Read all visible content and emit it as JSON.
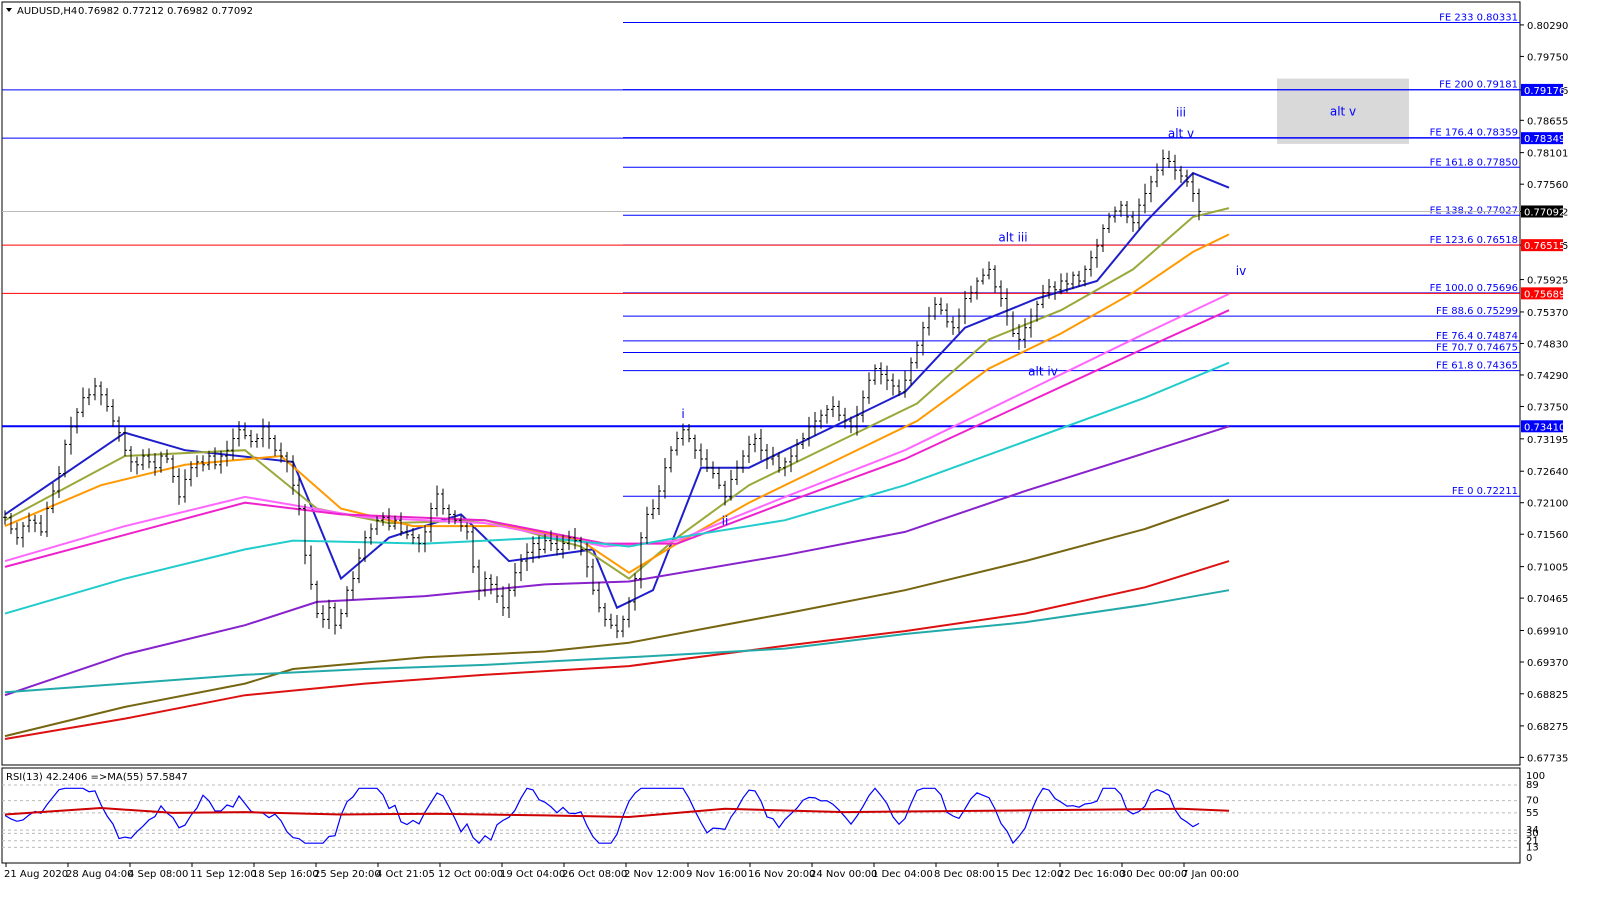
{
  "header": {
    "title": "AUDUSD,H4",
    "ohlc": "0.76982 0.77212 0.76982 0.77092"
  },
  "colors": {
    "fe_line": "#0000ff",
    "fe_red": "#ff0000",
    "hline_341": "#0000ff",
    "current_price_bg": "#000000",
    "red_tag_bg": "#ff0000",
    "blue_tag_bg": "#0000ff",
    "rsi_line": "#0000ff",
    "rsi_ma": "#cc0000",
    "ma_blue": "#1e1ecc",
    "ma_olive": "#9aa83a",
    "ma_orange": "#ff9900",
    "ma_violet": "#ff66ff",
    "ma_magenta": "#ee22cc",
    "ma_cyan": "#22cccc",
    "ma_purple": "#8822cc",
    "ma_darkolive": "#776611",
    "ma_red": "#dd1111",
    "ma_teal": "#22aaaa",
    "box": "#d9d9d9"
  },
  "chart_data": {
    "type": "line",
    "symbol": "AUDUSD",
    "timeframe": "H4",
    "price_axis": {
      "ylim": [
        0.6769,
        0.8058
      ],
      "ticks": [
        "0.80290",
        "0.79750",
        "0.79176",
        "0.78655",
        "0.78101",
        "0.77560",
        "0.77092",
        "0.76515",
        "0.75925",
        "0.75370",
        "0.74830",
        "0.74290",
        "0.73750",
        "0.73195",
        "0.72640",
        "0.72100",
        "0.71560",
        "0.71005",
        "0.70465",
        "0.69910",
        "0.69370",
        "0.68825",
        "0.68275",
        "0.67735"
      ]
    },
    "time_axis": {
      "ticks": [
        "21 Aug 2020",
        "28 Aug 04:00",
        "4 Sep 08:00",
        "11 Sep 12:00",
        "18 Sep 16:00",
        "25 Sep 20:00",
        "4 Oct 21:05",
        "12 Oct 00:00",
        "19 Oct 04:00",
        "26 Oct 08:00",
        "2 Nov 12:00",
        "9 Nov 16:00",
        "16 Nov 20:00",
        "24 Nov 00:00",
        "1 Dec 04:00",
        "8 Dec 08:00",
        "15 Dec 12:00",
        "22 Dec 16:00",
        "30 Dec 00:00",
        "7 Jan 00:00"
      ]
    },
    "fib_levels": [
      {
        "label": "FE 233 0.80331",
        "price": 0.80331
      },
      {
        "label": "FE 200 0.79181",
        "price": 0.79181
      },
      {
        "label": "FE 176.4 0.78359",
        "price": 0.78359
      },
      {
        "label": "FE 161.8 0.77850",
        "price": 0.7785
      },
      {
        "label": "FE 138.2 0.77027",
        "price": 0.77027
      },
      {
        "label": "FE 123.6 0.76518",
        "price": 0.76518
      },
      {
        "label": "FE 100.0 0.75696",
        "price": 0.75696
      },
      {
        "label": "FE 88.6 0.75299",
        "price": 0.75299
      },
      {
        "label": "FE 76.4 0.74874",
        "price": 0.74874
      },
      {
        "label": "FE 70.7 0.74675",
        "price": 0.74675
      },
      {
        "label": "FE 61.8 0.74365",
        "price": 0.74365
      },
      {
        "label": "FE 0 0.72211",
        "price": 0.72211
      }
    ],
    "price_tags": [
      {
        "text": "0.79176",
        "price": 0.79176,
        "style": "blue"
      },
      {
        "text": "0.78349",
        "price": 0.78349,
        "style": "blue"
      },
      {
        "text": "0.77092",
        "price": 0.77092,
        "style": "black"
      },
      {
        "text": "0.76515",
        "price": 0.76515,
        "style": "red"
      },
      {
        "text": "0.75689",
        "price": 0.75689,
        "style": "red"
      },
      {
        "text": "0.73410",
        "price": 0.7341,
        "style": "blue"
      }
    ],
    "full_lines": [
      {
        "price": 0.79176,
        "color": "blue"
      },
      {
        "price": 0.78349,
        "color": "blue"
      },
      {
        "price": 0.77092,
        "color": "gray"
      },
      {
        "price": 0.76515,
        "color": "red"
      },
      {
        "price": 0.75689,
        "color": "red"
      },
      {
        "price": 0.7341,
        "color": "blue",
        "thick": true
      }
    ],
    "wave_labels": [
      {
        "text": "iii",
        "bar": 196,
        "price": 0.7872
      },
      {
        "text": "alt v",
        "bar": 196,
        "price": 0.7836
      },
      {
        "text": "alt iii",
        "bar": 168,
        "price": 0.7658
      },
      {
        "text": "iv",
        "bar": 206,
        "price": 0.76
      },
      {
        "text": "alt iv",
        "bar": 173,
        "price": 0.7428
      },
      {
        "text": "i",
        "bar": 113,
        "price": 0.7355
      },
      {
        "text": "ii",
        "bar": 120,
        "price": 0.7172
      }
    ],
    "box": {
      "label": "alt v",
      "bar_start": 212,
      "bar_end": 234,
      "price_top": 0.7937,
      "price_bottom": 0.7825
    },
    "closes": [
      0.7185,
      0.7165,
      0.715,
      0.717,
      0.718,
      0.7175,
      0.716,
      0.72,
      0.723,
      0.726,
      0.731,
      0.734,
      0.7365,
      0.739,
      0.7395,
      0.741,
      0.7395,
      0.7375,
      0.735,
      0.733,
      0.73,
      0.728,
      0.7275,
      0.729,
      0.728,
      0.727,
      0.729,
      0.7285,
      0.7255,
      0.722,
      0.725,
      0.727,
      0.728,
      0.7275,
      0.729,
      0.7275,
      0.729,
      0.73,
      0.732,
      0.7335,
      0.7325,
      0.7315,
      0.732,
      0.734,
      0.732,
      0.73,
      0.729,
      0.728,
      0.724,
      0.72,
      0.712,
      0.707,
      0.702,
      0.701,
      0.703,
      0.7,
      0.702,
      0.706,
      0.708,
      0.7115,
      0.715,
      0.7165,
      0.718,
      0.7185,
      0.717,
      0.718,
      0.716,
      0.7155,
      0.715,
      0.714,
      0.716,
      0.72,
      0.7225,
      0.72,
      0.719,
      0.718,
      0.717,
      0.716,
      0.71,
      0.706,
      0.708,
      0.707,
      0.705,
      0.703,
      0.706,
      0.709,
      0.711,
      0.7125,
      0.714,
      0.713,
      0.7145,
      0.714,
      0.713,
      0.714,
      0.715,
      0.7145,
      0.713,
      0.71,
      0.706,
      0.703,
      0.701,
      0.7,
      0.699,
      0.701,
      0.704,
      0.708,
      0.715,
      0.719,
      0.72,
      0.723,
      0.727,
      0.73,
      0.732,
      0.7335,
      0.732,
      0.73,
      0.7285,
      0.727,
      0.726,
      0.724,
      0.722,
      0.725,
      0.727,
      0.729,
      0.731,
      0.732,
      0.73,
      0.7285,
      0.729,
      0.727,
      0.728,
      0.729,
      0.731,
      0.732,
      0.734,
      0.735,
      0.736,
      0.737,
      0.7375,
      0.736,
      0.735,
      0.734,
      0.736,
      0.739,
      0.742,
      0.744,
      0.743,
      0.742,
      0.741,
      0.74,
      0.742,
      0.745,
      0.748,
      0.751,
      0.753,
      0.755,
      0.754,
      0.752,
      0.751,
      0.753,
      0.756,
      0.757,
      0.759,
      0.76,
      0.761,
      0.758,
      0.756,
      0.753,
      0.75,
      0.749,
      0.751,
      0.753,
      0.755,
      0.757,
      0.758,
      0.7575,
      0.759,
      0.7585,
      0.76,
      0.759,
      0.761,
      0.763,
      0.765,
      0.768,
      0.77,
      0.771,
      0.772,
      0.77,
      0.769,
      0.772,
      0.774,
      0.776,
      0.778,
      0.78,
      0.7795,
      0.778,
      0.777,
      0.776,
      0.774,
      0.7709
    ],
    "ma_series": [
      {
        "color": "ma_blue",
        "points": [
          [
            0,
            0.719
          ],
          [
            20,
            0.733
          ],
          [
            30,
            0.73
          ],
          [
            48,
            0.728
          ],
          [
            56,
            0.708
          ],
          [
            64,
            0.715
          ],
          [
            76,
            0.719
          ],
          [
            84,
            0.711
          ],
          [
            98,
            0.713
          ],
          [
            102,
            0.703
          ],
          [
            108,
            0.706
          ],
          [
            116,
            0.727
          ],
          [
            124,
            0.727
          ],
          [
            140,
            0.735
          ],
          [
            150,
            0.74
          ],
          [
            160,
            0.751
          ],
          [
            172,
            0.756
          ],
          [
            182,
            0.759
          ],
          [
            190,
            0.769
          ],
          [
            198,
            0.7775
          ],
          [
            204,
            0.775
          ]
        ]
      },
      {
        "color": "ma_olive",
        "points": [
          [
            0,
            0.718
          ],
          [
            20,
            0.729
          ],
          [
            40,
            0.73
          ],
          [
            52,
            0.72
          ],
          [
            64,
            0.7175
          ],
          [
            80,
            0.718
          ],
          [
            96,
            0.7135
          ],
          [
            104,
            0.708
          ],
          [
            112,
            0.715
          ],
          [
            124,
            0.724
          ],
          [
            140,
            0.732
          ],
          [
            152,
            0.738
          ],
          [
            164,
            0.749
          ],
          [
            176,
            0.754
          ],
          [
            188,
            0.761
          ],
          [
            198,
            0.77
          ],
          [
            204,
            0.7715
          ]
        ]
      },
      {
        "color": "ma_orange",
        "points": [
          [
            0,
            0.717
          ],
          [
            16,
            0.724
          ],
          [
            30,
            0.7275
          ],
          [
            46,
            0.729
          ],
          [
            56,
            0.72
          ],
          [
            68,
            0.717
          ],
          [
            84,
            0.717
          ],
          [
            96,
            0.7145
          ],
          [
            104,
            0.709
          ],
          [
            112,
            0.714
          ],
          [
            124,
            0.721
          ],
          [
            140,
            0.729
          ],
          [
            152,
            0.735
          ],
          [
            164,
            0.744
          ],
          [
            176,
            0.75
          ],
          [
            188,
            0.757
          ],
          [
            198,
            0.764
          ],
          [
            204,
            0.767
          ]
        ]
      },
      {
        "color": "ma_violet",
        "points": [
          [
            0,
            0.711
          ],
          [
            20,
            0.717
          ],
          [
            40,
            0.722
          ],
          [
            60,
            0.7185
          ],
          [
            80,
            0.7175
          ],
          [
            100,
            0.7135
          ],
          [
            112,
            0.7145
          ],
          [
            130,
            0.722
          ],
          [
            150,
            0.73
          ],
          [
            170,
            0.74
          ],
          [
            190,
            0.75
          ],
          [
            204,
            0.7568
          ]
        ]
      },
      {
        "color": "ma_magenta",
        "points": [
          [
            0,
            0.71
          ],
          [
            20,
            0.7155
          ],
          [
            40,
            0.721
          ],
          [
            56,
            0.719
          ],
          [
            80,
            0.718
          ],
          [
            100,
            0.714
          ],
          [
            112,
            0.714
          ],
          [
            130,
            0.721
          ],
          [
            150,
            0.7285
          ],
          [
            170,
            0.738
          ],
          [
            190,
            0.7475
          ],
          [
            204,
            0.754
          ]
        ]
      },
      {
        "color": "ma_cyan",
        "points": [
          [
            0,
            0.702
          ],
          [
            20,
            0.708
          ],
          [
            40,
            0.713
          ],
          [
            48,
            0.7145
          ],
          [
            70,
            0.714
          ],
          [
            90,
            0.715
          ],
          [
            104,
            0.7135
          ],
          [
            112,
            0.715
          ],
          [
            130,
            0.718
          ],
          [
            150,
            0.724
          ],
          [
            170,
            0.7315
          ],
          [
            190,
            0.739
          ],
          [
            204,
            0.745
          ]
        ]
      },
      {
        "color": "ma_purple",
        "points": [
          [
            0,
            0.688
          ],
          [
            20,
            0.695
          ],
          [
            40,
            0.7
          ],
          [
            52,
            0.704
          ],
          [
            70,
            0.705
          ],
          [
            90,
            0.707
          ],
          [
            104,
            0.7075
          ],
          [
            130,
            0.712
          ],
          [
            150,
            0.716
          ],
          [
            170,
            0.723
          ],
          [
            190,
            0.7295
          ],
          [
            204,
            0.7341
          ]
        ]
      },
      {
        "color": "ma_darkolive",
        "points": [
          [
            0,
            0.681
          ],
          [
            20,
            0.686
          ],
          [
            40,
            0.69
          ],
          [
            48,
            0.6925
          ],
          [
            70,
            0.6945
          ],
          [
            90,
            0.6955
          ],
          [
            104,
            0.697
          ],
          [
            130,
            0.702
          ],
          [
            150,
            0.706
          ],
          [
            170,
            0.711
          ],
          [
            190,
            0.7165
          ],
          [
            204,
            0.7215
          ]
        ]
      },
      {
        "color": "ma_red",
        "points": [
          [
            0,
            0.6805
          ],
          [
            20,
            0.684
          ],
          [
            40,
            0.688
          ],
          [
            60,
            0.69
          ],
          [
            80,
            0.6915
          ],
          [
            104,
            0.693
          ],
          [
            130,
            0.6965
          ],
          [
            150,
            0.699
          ],
          [
            170,
            0.702
          ],
          [
            190,
            0.7065
          ],
          [
            204,
            0.711
          ]
        ]
      },
      {
        "color": "ma_teal",
        "points": [
          [
            0,
            0.6885
          ],
          [
            20,
            0.69
          ],
          [
            40,
            0.6915
          ],
          [
            60,
            0.6925
          ],
          [
            80,
            0.6932
          ],
          [
            104,
            0.6945
          ],
          [
            130,
            0.696
          ],
          [
            150,
            0.6985
          ],
          [
            170,
            0.7005
          ],
          [
            190,
            0.7035
          ],
          [
            204,
            0.706
          ]
        ]
      }
    ],
    "rsi": {
      "header": "RSI(13) 42.2406  =>MA(55) 57.5847",
      "ticks": [
        "100",
        "89",
        "70",
        "55",
        "34",
        "30",
        "21",
        "13",
        "0"
      ],
      "levels": [
        89,
        70,
        55,
        34,
        30,
        21,
        13
      ],
      "ma_points": [
        [
          0,
          53
        ],
        [
          16,
          61
        ],
        [
          28,
          55
        ],
        [
          40,
          56
        ],
        [
          56,
          53
        ],
        [
          72,
          54
        ],
        [
          90,
          52
        ],
        [
          104,
          50
        ],
        [
          120,
          60
        ],
        [
          140,
          56
        ],
        [
          170,
          58
        ],
        [
          196,
          60
        ],
        [
          204,
          57.6
        ]
      ],
      "last": 42.2406
    }
  }
}
